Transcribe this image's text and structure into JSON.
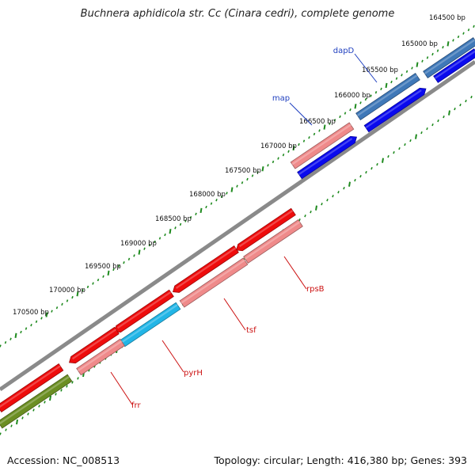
{
  "title": "Buchnera aphidicola str. Cc (Cinara cedri), complete genome",
  "footer": {
    "accession": "Accession: NC_008513",
    "summary": "Topology: circular; Length: 416,380 bp; Genes: 393"
  },
  "ticks": [
    {
      "bp": 164500,
      "label": "164500 bp"
    },
    {
      "bp": 165000,
      "label": "165000 bp"
    },
    {
      "bp": 165500,
      "label": "165500 bp"
    },
    {
      "bp": 166000,
      "label": "166000 bp"
    },
    {
      "bp": 166500,
      "label": "166500 bp"
    },
    {
      "bp": 167000,
      "label": "167000 bp"
    },
    {
      "bp": 167500,
      "label": "167500 bp"
    },
    {
      "bp": 168000,
      "label": "168000 bp"
    },
    {
      "bp": 168500,
      "label": "168500 bp"
    },
    {
      "bp": 169000,
      "label": "169000 bp"
    },
    {
      "bp": 169500,
      "label": "169500 bp"
    },
    {
      "bp": 170000,
      "label": "170000 bp"
    },
    {
      "bp": 170500,
      "label": "170500 bp"
    }
  ],
  "labeled_genes": [
    {
      "name": "dapD",
      "color": "#1f3fbf"
    },
    {
      "name": "map",
      "color": "#1f3fbf"
    },
    {
      "name": "rpsB",
      "color": "#cc1111"
    },
    {
      "name": "tsf",
      "color": "#cc1111"
    },
    {
      "name": "pyrH",
      "color": "#cc1111"
    },
    {
      "name": "frr",
      "color": "#cc1111"
    }
  ],
  "colors": {
    "backbone": "#808080",
    "tick": "#1e8a1e",
    "forward_cds": "#0a0aee",
    "forward_light": "#3f78b8",
    "forward_pink": "#ef8a8a",
    "reverse_cds": "#ee0c0c",
    "reverse_pink": "#ef8a8a",
    "cyan": "#22b5e6",
    "olive": "#6b8e23"
  }
}
